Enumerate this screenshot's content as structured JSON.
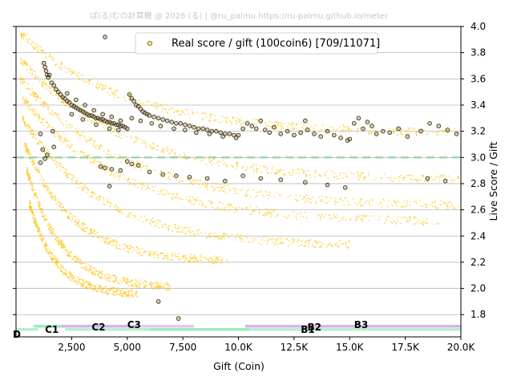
{
  "watermark": "ぱ(る)むの計算機 @ 2026 (る) | @ru_palmu  https://ru-palmu.github.io/meter",
  "chart_data": {
    "type": "scatter",
    "title": "",
    "xlabel": "Gift (Coin)",
    "ylabel": "Live Score / Gift",
    "xlim": [
      0,
      20000
    ],
    "ylim": [
      1.63,
      4.0
    ],
    "x_ticks": [
      {
        "value": 2500,
        "label": "2,500"
      },
      {
        "value": 5000,
        "label": "5,000"
      },
      {
        "value": 7500,
        "label": "7,500"
      },
      {
        "value": 10000,
        "label": "10.0K"
      },
      {
        "value": 12500,
        "label": "12.5K"
      },
      {
        "value": 15000,
        "label": "15.0K"
      },
      {
        "value": 17500,
        "label": "17.5K"
      },
      {
        "value": 20000,
        "label": "20.0K"
      }
    ],
    "y_ticks": [
      {
        "value": 1.8,
        "label": "1.8"
      },
      {
        "value": 2.0,
        "label": "2.0"
      },
      {
        "value": 2.2,
        "label": "2.2"
      },
      {
        "value": 2.4,
        "label": "2.4"
      },
      {
        "value": 2.6,
        "label": "2.6"
      },
      {
        "value": 2.8,
        "label": "2.8"
      },
      {
        "value": 3.0,
        "label": "3.0"
      },
      {
        "value": 3.2,
        "label": "3.2"
      },
      {
        "value": 3.4,
        "label": "3.4"
      },
      {
        "value": 3.6,
        "label": "3.6"
      },
      {
        "value": 3.8,
        "label": "3.8"
      },
      {
        "value": 4.0,
        "label": "4.0"
      }
    ],
    "grid": "horizontal",
    "reference_line": {
      "y": 3.0,
      "style": "dashed",
      "color": "#8fd19e"
    },
    "legend": {
      "position": "top-center",
      "label": "Real score / gift (100coin6) [709/11071]"
    },
    "background_series": {
      "color": "#ffc107",
      "bands": [
        {
          "level": 3.0,
          "x_from": 200,
          "x_to": 20000,
          "y_start": 3.95,
          "y_end": 3.18
        },
        {
          "level": 2.9,
          "x_from": 200,
          "x_to": 20000,
          "y_start": 3.75,
          "y_end": 2.82
        },
        {
          "level": 2.8,
          "x_from": 200,
          "x_to": 20000,
          "y_start": 3.6,
          "y_end": 2.62
        },
        {
          "level": 2.7,
          "x_from": 300,
          "x_to": 19000,
          "y_start": 3.45,
          "y_end": 2.5
        },
        {
          "level": 2.6,
          "x_from": 300,
          "x_to": 15000,
          "y_start": 3.3,
          "y_end": 2.32
        },
        {
          "level": 2.5,
          "x_from": 400,
          "x_to": 9500,
          "y_start": 3.1,
          "y_end": 2.2
        },
        {
          "level": 2.3,
          "x_from": 500,
          "x_to": 7000,
          "y_start": 2.9,
          "y_end": 2.0
        },
        {
          "level": 2.1,
          "x_from": 600,
          "x_to": 5500,
          "y_start": 2.65,
          "y_end": 1.95
        }
      ]
    },
    "real_series": {
      "name": "Real score / gift (100coin6)",
      "color": "#000000",
      "points": [
        [
          1250,
          3.72
        ],
        [
          1300,
          3.69
        ],
        [
          1350,
          3.66
        ],
        [
          1400,
          3.63
        ],
        [
          1450,
          3.61
        ],
        [
          1500,
          3.63
        ],
        [
          1600,
          3.57
        ],
        [
          1700,
          3.55
        ],
        [
          1800,
          3.52
        ],
        [
          1900,
          3.5
        ],
        [
          2000,
          3.48
        ],
        [
          2100,
          3.46
        ],
        [
          2200,
          3.45
        ],
        [
          2300,
          3.43
        ],
        [
          2400,
          3.42
        ],
        [
          2500,
          3.4
        ],
        [
          2600,
          3.39
        ],
        [
          2700,
          3.38
        ],
        [
          2800,
          3.37
        ],
        [
          2900,
          3.36
        ],
        [
          3000,
          3.35
        ],
        [
          3100,
          3.34
        ],
        [
          3200,
          3.33
        ],
        [
          3300,
          3.32
        ],
        [
          3400,
          3.32
        ],
        [
          3500,
          3.31
        ],
        [
          3600,
          3.3
        ],
        [
          3700,
          3.3
        ],
        [
          3800,
          3.29
        ],
        [
          3900,
          3.29
        ],
        [
          4000,
          3.28
        ],
        [
          4100,
          3.27
        ],
        [
          4200,
          3.27
        ],
        [
          4300,
          3.26
        ],
        [
          4400,
          3.26
        ],
        [
          4500,
          3.25
        ],
        [
          4600,
          3.25
        ],
        [
          4700,
          3.24
        ],
        [
          4800,
          3.24
        ],
        [
          4900,
          3.23
        ],
        [
          2300,
          3.49
        ],
        [
          2700,
          3.44
        ],
        [
          3100,
          3.4
        ],
        [
          3500,
          3.36
        ],
        [
          3900,
          3.33
        ],
        [
          4300,
          3.31
        ],
        [
          4700,
          3.28
        ],
        [
          2500,
          3.33
        ],
        [
          3000,
          3.29
        ],
        [
          3600,
          3.25
        ],
        [
          4200,
          3.22
        ],
        [
          4600,
          3.21
        ],
        [
          5000,
          3.22
        ],
        [
          1100,
          3.18
        ],
        [
          1200,
          3.06
        ],
        [
          1300,
          2.99
        ],
        [
          1100,
          2.96
        ],
        [
          1400,
          3.02
        ],
        [
          1650,
          3.2
        ],
        [
          1700,
          3.08
        ],
        [
          5100,
          3.48
        ],
        [
          5200,
          3.45
        ],
        [
          5300,
          3.43
        ],
        [
          5400,
          3.4
        ],
        [
          5500,
          3.39
        ],
        [
          5600,
          3.37
        ],
        [
          5700,
          3.35
        ],
        [
          5800,
          3.34
        ],
        [
          5900,
          3.33
        ],
        [
          6000,
          3.32
        ],
        [
          6200,
          3.31
        ],
        [
          6400,
          3.3
        ],
        [
          6600,
          3.29
        ],
        [
          6800,
          3.28
        ],
        [
          7000,
          3.27
        ],
        [
          7200,
          3.26
        ],
        [
          7400,
          3.26
        ],
        [
          7600,
          3.25
        ],
        [
          7800,
          3.24
        ],
        [
          8000,
          3.23
        ],
        [
          8200,
          3.22
        ],
        [
          8400,
          3.22
        ],
        [
          8600,
          3.21
        ],
        [
          8800,
          3.2
        ],
        [
          9000,
          3.2
        ],
        [
          9200,
          3.19
        ],
        [
          9400,
          3.18
        ],
        [
          9600,
          3.18
        ],
        [
          9800,
          3.17
        ],
        [
          10000,
          3.17
        ],
        [
          5200,
          3.3
        ],
        [
          5600,
          3.28
        ],
        [
          6100,
          3.26
        ],
        [
          6500,
          3.24
        ],
        [
          7100,
          3.22
        ],
        [
          7600,
          3.21
        ],
        [
          8100,
          3.19
        ],
        [
          8700,
          3.18
        ],
        [
          9300,
          3.16
        ],
        [
          9900,
          3.15
        ],
        [
          10200,
          3.22
        ],
        [
          10400,
          3.26
        ],
        [
          10600,
          3.24
        ],
        [
          10800,
          3.22
        ],
        [
          11000,
          3.28
        ],
        [
          11200,
          3.21
        ],
        [
          11400,
          3.19
        ],
        [
          11600,
          3.23
        ],
        [
          11900,
          3.18
        ],
        [
          12200,
          3.2
        ],
        [
          12500,
          3.17
        ],
        [
          12800,
          3.19
        ],
        [
          13100,
          3.21
        ],
        [
          13400,
          3.18
        ],
        [
          13700,
          3.16
        ],
        [
          14000,
          3.2
        ],
        [
          14300,
          3.17
        ],
        [
          14600,
          3.15
        ],
        [
          14900,
          3.13
        ],
        [
          15000,
          3.14
        ],
        [
          15200,
          3.26
        ],
        [
          15400,
          3.3
        ],
        [
          15600,
          3.22
        ],
        [
          15800,
          3.27
        ],
        [
          16000,
          3.24
        ],
        [
          16200,
          3.18
        ],
        [
          16500,
          3.2
        ],
        [
          16800,
          3.19
        ],
        [
          17200,
          3.22
        ],
        [
          17600,
          3.16
        ],
        [
          18200,
          3.2
        ],
        [
          18600,
          3.26
        ],
        [
          19000,
          3.24
        ],
        [
          19400,
          3.21
        ],
        [
          19800,
          3.18
        ],
        [
          3800,
          2.93
        ],
        [
          4000,
          2.92
        ],
        [
          4300,
          2.91
        ],
        [
          4700,
          2.9
        ],
        [
          5000,
          2.97
        ],
        [
          5200,
          2.95
        ],
        [
          5500,
          2.94
        ],
        [
          6000,
          2.89
        ],
        [
          6600,
          2.87
        ],
        [
          7200,
          2.86
        ],
        [
          7800,
          2.85
        ],
        [
          8600,
          2.84
        ],
        [
          9400,
          2.82
        ],
        [
          10200,
          2.86
        ],
        [
          11000,
          2.84
        ],
        [
          11900,
          2.83
        ],
        [
          13000,
          2.81
        ],
        [
          14000,
          2.79
        ],
        [
          14800,
          2.77
        ],
        [
          18500,
          2.84
        ],
        [
          19300,
          2.82
        ],
        [
          4200,
          2.78
        ],
        [
          6400,
          1.9
        ],
        [
          7300,
          1.77
        ],
        [
          4000,
          3.92
        ],
        [
          7500,
          3.85
        ],
        [
          13000,
          3.28
        ]
      ]
    },
    "rank_labels": [
      {
        "label": "D",
        "x": 0
      },
      {
        "label": "C1",
        "x": 1300
      },
      {
        "label": "C2",
        "x": 3400
      },
      {
        "label": "C3",
        "x": 5000
      },
      {
        "label": "B1",
        "x": 12800
      },
      {
        "label": "B2",
        "x": 13100
      },
      {
        "label": "B3",
        "x": 15200
      }
    ],
    "rank_bars": [
      {
        "x_from": 0,
        "x_to": 1000,
        "color": "#b5f0cf",
        "row": 1
      },
      {
        "x_from": 800,
        "x_to": 2000,
        "color": "#9debc0",
        "row": 0
      },
      {
        "x_from": 2000,
        "x_to": 6000,
        "color": "#d8b4e8",
        "row": 0
      },
      {
        "x_from": 2200,
        "x_to": 8000,
        "color": "#b5f0cf",
        "row": 1
      },
      {
        "x_from": 5500,
        "x_to": 8000,
        "color": "#e4c9ef",
        "row": 0
      },
      {
        "x_from": 6000,
        "x_to": 10500,
        "color": "#9debc0",
        "row": 1
      },
      {
        "x_from": 10300,
        "x_to": 20000,
        "color": "#d8b4e8",
        "row": 0
      },
      {
        "x_from": 10500,
        "x_to": 20000,
        "color": "#b5f0cf",
        "row": 1
      }
    ]
  }
}
